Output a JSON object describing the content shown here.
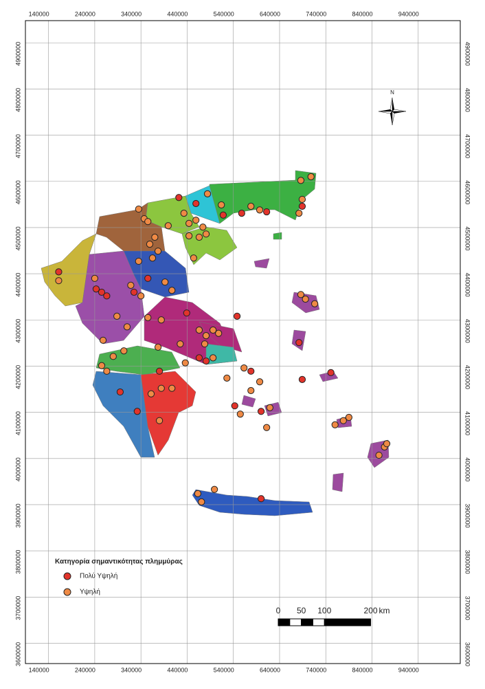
{
  "map": {
    "xlim": [
      90000,
      1031000
    ],
    "ylim": [
      3556000,
      4948000
    ],
    "xticks": [
      140000,
      240000,
      340000,
      440000,
      540000,
      640000,
      740000,
      840000,
      940000
    ],
    "yticks": [
      3600000,
      3700000,
      3800000,
      3900000,
      4000000,
      4100000,
      4200000,
      4300000,
      4400000,
      4500000,
      4600000,
      4700000,
      4800000,
      4900000
    ],
    "north": "N",
    "legend": {
      "title": "Κατηγορία σημαντικότητας πλημμύρας"
    },
    "layers": [
      {
        "name": "Πολύ Υψηλή",
        "color": "#e2342b",
        "points": [
          [
            422000,
            4565000
          ],
          [
            459000,
            4552000
          ],
          [
            518000,
            4527000
          ],
          [
            558000,
            4531000
          ],
          [
            612000,
            4534000
          ],
          [
            689000,
            4546000
          ],
          [
            325000,
            4360000
          ],
          [
            355000,
            4390000
          ],
          [
            243000,
            4367000
          ],
          [
            255000,
            4360000
          ],
          [
            266000,
            4352000
          ],
          [
            162000,
            4404000
          ],
          [
            439000,
            4315000
          ],
          [
            466000,
            4218000
          ],
          [
            481000,
            4211000
          ],
          [
            548000,
            4308000
          ],
          [
            578000,
            4189000
          ],
          [
            543000,
            4114000
          ],
          [
            600000,
            4102000
          ],
          [
            689000,
            4171000
          ],
          [
            751000,
            4186000
          ],
          [
            682000,
            4251000
          ],
          [
            600000,
            3913000
          ],
          [
            332000,
            4102000
          ],
          [
            295000,
            4144000
          ],
          [
            380000,
            4189000
          ]
        ]
      },
      {
        "name": "Υψηλή",
        "color": "#ef8a45",
        "points": [
          [
            335000,
            4540000
          ],
          [
            484000,
            4573000
          ],
          [
            514000,
            4549000
          ],
          [
            578000,
            4546000
          ],
          [
            597000,
            4538000
          ],
          [
            686000,
            4602000
          ],
          [
            708000,
            4610000
          ],
          [
            689000,
            4561000
          ],
          [
            682000,
            4531000
          ],
          [
            347000,
            4519000
          ],
          [
            355000,
            4513000
          ],
          [
            399000,
            4504000
          ],
          [
            433000,
            4531000
          ],
          [
            444000,
            4509000
          ],
          [
            459000,
            4516000
          ],
          [
            474000,
            4501000
          ],
          [
            466000,
            4479000
          ],
          [
            444000,
            4482000
          ],
          [
            481000,
            4486000
          ],
          [
            454000,
            4434000
          ],
          [
            359000,
            4464000
          ],
          [
            370000,
            4479000
          ],
          [
            377000,
            4449000
          ],
          [
            365000,
            4434000
          ],
          [
            335000,
            4427000
          ],
          [
            318000,
            4375000
          ],
          [
            340000,
            4352000
          ],
          [
            392000,
            4382000
          ],
          [
            407000,
            4364000
          ],
          [
            240000,
            4390000
          ],
          [
            162000,
            4385000
          ],
          [
            288000,
            4308000
          ],
          [
            310000,
            4285000
          ],
          [
            355000,
            4305000
          ],
          [
            384000,
            4300000
          ],
          [
            466000,
            4278000
          ],
          [
            481000,
            4266000
          ],
          [
            496000,
            4278000
          ],
          [
            508000,
            4271000
          ],
          [
            478000,
            4248000
          ],
          [
            496000,
            4218000
          ],
          [
            436000,
            4207000
          ],
          [
            425000,
            4248000
          ],
          [
            377000,
            4241000
          ],
          [
            526000,
            4174000
          ],
          [
            563000,
            4196000
          ],
          [
            597000,
            4166000
          ],
          [
            578000,
            4147000
          ],
          [
            555000,
            4096000
          ],
          [
            619000,
            4110000
          ],
          [
            612000,
            4067000
          ],
          [
            686000,
            4355000
          ],
          [
            696000,
            4345000
          ],
          [
            716000,
            4335000
          ],
          [
            760000,
            4073000
          ],
          [
            778000,
            4082000
          ],
          [
            790000,
            4089000
          ],
          [
            855000,
            4007000
          ],
          [
            867000,
            4025000
          ],
          [
            872000,
            4032000
          ],
          [
            463000,
            3924000
          ],
          [
            471000,
            3906000
          ],
          [
            499000,
            3933000
          ],
          [
            380000,
            4082000
          ],
          [
            362000,
            4140000
          ],
          [
            384000,
            4152000
          ],
          [
            407000,
            4152000
          ],
          [
            255000,
            4201000
          ],
          [
            266000,
            4189000
          ],
          [
            280000,
            4221000
          ],
          [
            303000,
            4233000
          ],
          [
            258000,
            4256000
          ]
        ]
      }
    ],
    "scale_bar": {
      "ticks": [
        0,
        50,
        100,
        200
      ],
      "unit": "km"
    }
  }
}
